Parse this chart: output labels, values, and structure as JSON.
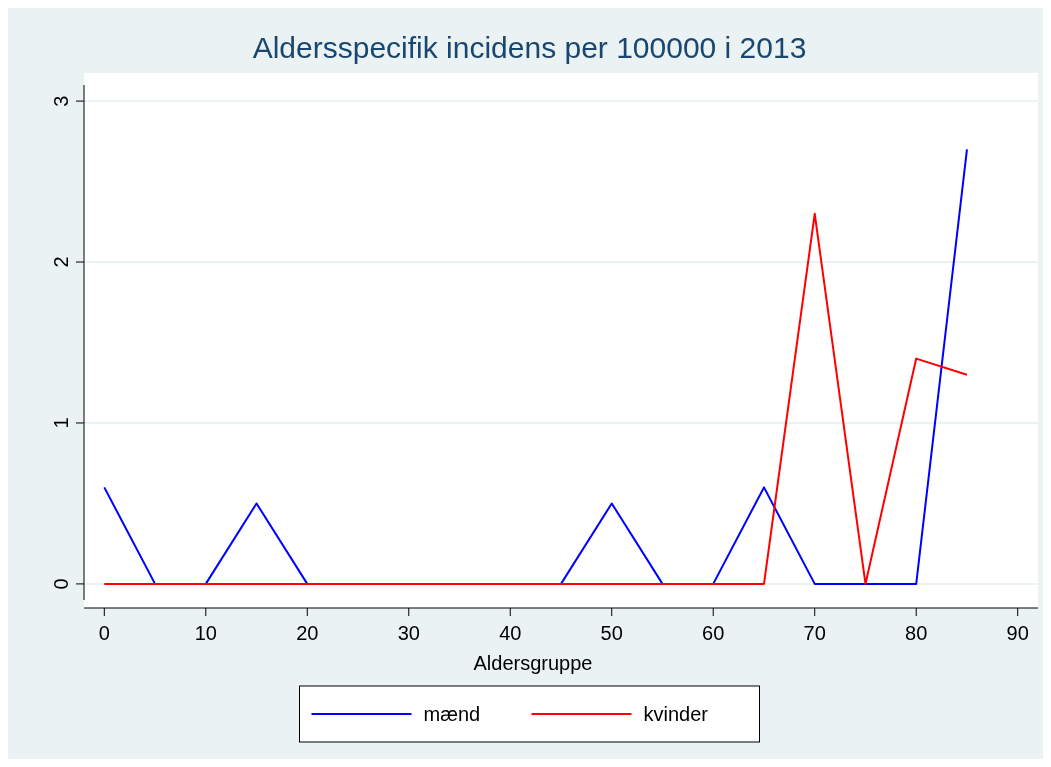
{
  "chart_data": {
    "type": "line",
    "title": "Aldersspecifik incidens per 100000 i 2013",
    "xlabel": "Aldersgruppe",
    "x": [
      0,
      5,
      10,
      15,
      20,
      25,
      30,
      35,
      40,
      45,
      50,
      55,
      60,
      65,
      70,
      75,
      80,
      85
    ],
    "series": [
      {
        "name": "mænd",
        "color": "#0000ff",
        "values": [
          0.6,
          0,
          0,
          0.5,
          0,
          0,
          0,
          0,
          0,
          0,
          0.5,
          0,
          0,
          0.6,
          0,
          0,
          0,
          2.7
        ]
      },
      {
        "name": "kvinder",
        "color": "#ff0000",
        "values": [
          0,
          0,
          0,
          0,
          0,
          0,
          0,
          0,
          0,
          0,
          0,
          0,
          0,
          0,
          2.3,
          0,
          1.4,
          1.3
        ]
      }
    ],
    "xlim": [
      -2,
      92
    ],
    "xticks": [
      0,
      10,
      20,
      30,
      40,
      50,
      60,
      70,
      80,
      90
    ],
    "ylim": [
      -0.1,
      3.1
    ],
    "yticks": [
      0,
      1,
      2,
      3
    ],
    "grid": "y",
    "legend": "bottom",
    "marker": "none",
    "line_style": "solid"
  }
}
